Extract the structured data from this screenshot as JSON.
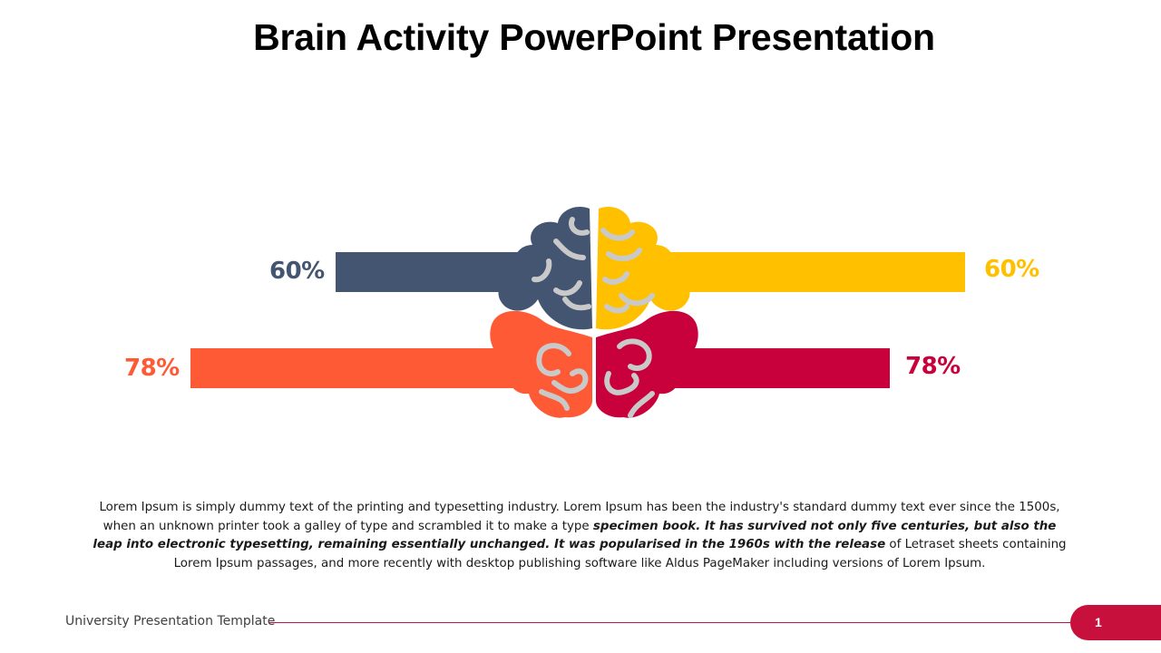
{
  "slide": {
    "title": "Brain Activity PowerPoint Presentation",
    "body": {
      "part1": "Lorem Ipsum is simply dummy text of the printing and typesetting industry. Lorem Ipsum has been the industry's standard dummy text ever since the 1500s, when an unknown printer took a galley of type and scrambled it to make a type ",
      "emphasis": "specimen book. It has survived not only five centuries, but also the leap into electronic typesetting, remaining essentially unchanged. It was popularised in the 1960s with the release",
      "part2": " of Letraset sheets containing Lorem Ipsum passages, and more recently with desktop publishing software like Aldus PageMaker including versions of Lorem Ipsum."
    },
    "footer": {
      "label": "University Presentation Template",
      "page_number": "1"
    }
  },
  "colors": {
    "navy": "#435570",
    "yellow": "#ffc000",
    "orange": "#ff5a36",
    "crimson": "#c8003c",
    "footer_accent": "#c8103c"
  },
  "metrics": [
    {
      "id": "top-left",
      "label": "60%",
      "value": 60,
      "color": "#435570"
    },
    {
      "id": "top-right",
      "label": "60%",
      "value": 60,
      "color": "#ffc000"
    },
    {
      "id": "bottom-left",
      "label": "78%",
      "value": 78,
      "color": "#ff5a36"
    },
    {
      "id": "bottom-right",
      "label": "78%",
      "value": 78,
      "color": "#c8003c"
    }
  ],
  "icons": {
    "brain": "brain-icon"
  }
}
